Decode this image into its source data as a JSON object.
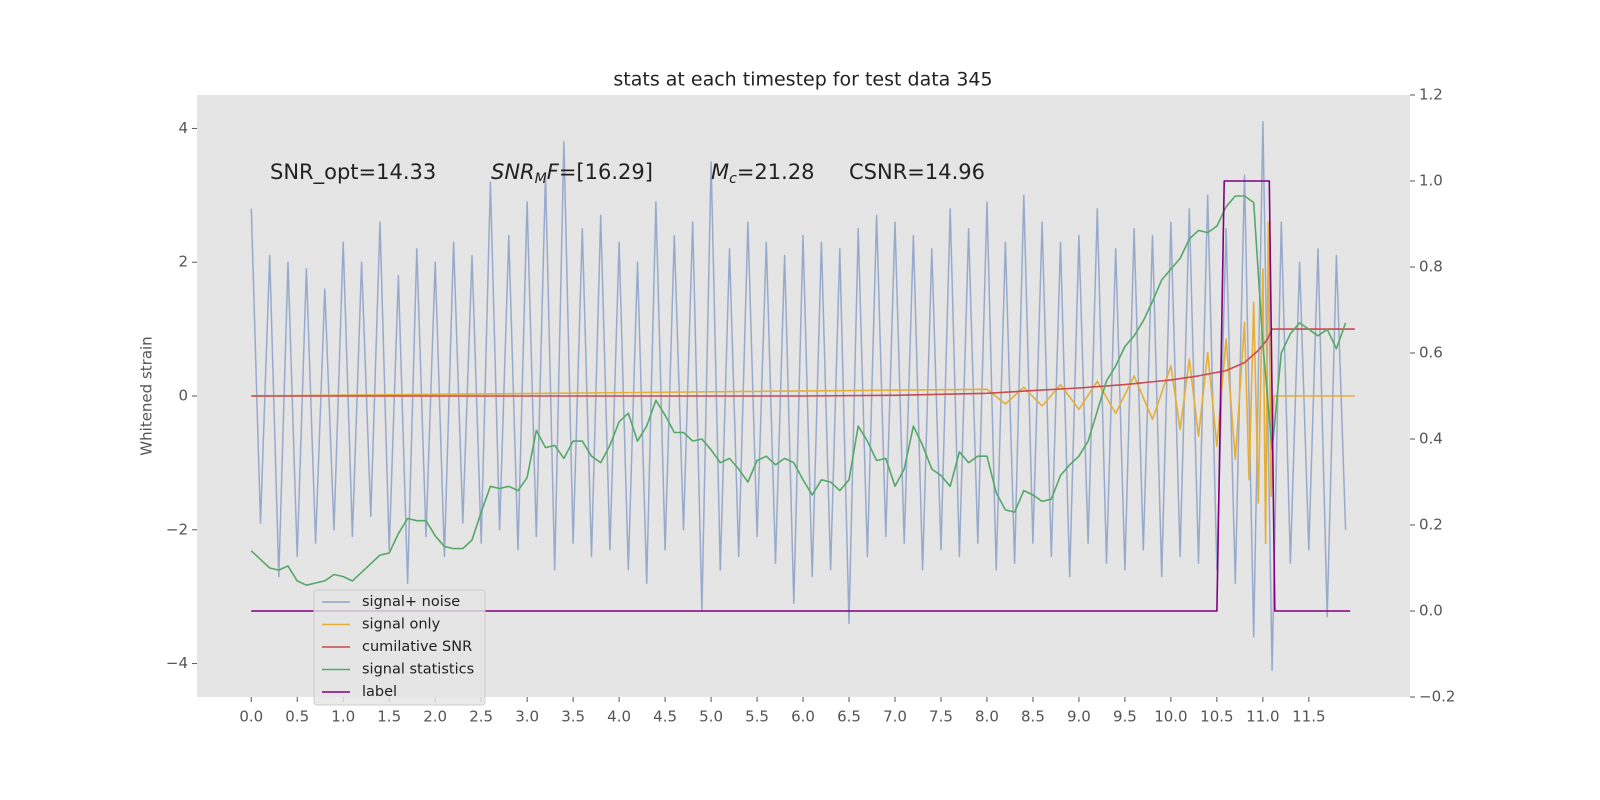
{
  "chart_data": {
    "type": "line",
    "title": "stats at each timestep for test data 345",
    "ylabel": "Whitened strain",
    "xlim": [
      -0.59,
      12.6
    ],
    "ylim": [
      -4.5,
      4.5
    ],
    "y2lim": [
      -0.2,
      1.2
    ],
    "grid": true,
    "legend_position": "lower left",
    "xticks": [
      {
        "value": 0,
        "label": "0.0"
      },
      0.5,
      {
        "value": 1,
        "label": "1.0"
      },
      1.5,
      {
        "value": 2,
        "label": "2.0"
      },
      2.5,
      {
        "value": 3,
        "label": "3.0"
      },
      3.5,
      {
        "value": 4,
        "label": "4.0"
      },
      4.5,
      {
        "value": 5,
        "label": "5.0"
      },
      5.5,
      {
        "value": 6,
        "label": "6.0"
      },
      6.5,
      {
        "value": 7,
        "label": "7.0"
      },
      7.5,
      {
        "value": 8,
        "label": "8.0"
      },
      8.5,
      {
        "value": 9,
        "label": "9.0"
      },
      9.5,
      {
        "value": 10,
        "label": "10.0"
      },
      10.5,
      {
        "value": 11,
        "label": "11.0"
      },
      11.5
    ],
    "yticks": [
      {
        "value": -4,
        "label": "−4"
      },
      {
        "value": -2,
        "label": "−2"
      },
      0,
      2,
      4
    ],
    "y2ticks": [
      {
        "value": -0.2,
        "label": "−0.2"
      },
      {
        "value": 0,
        "label": "0.0"
      },
      0.2,
      0.4,
      0.6,
      0.8,
      {
        "value": 1,
        "label": "1.0"
      },
      1.2
    ],
    "annotations": [
      {
        "parts": [
          "SNR_opt=14.33"
        ]
      },
      {
        "parts": [
          "SNR",
          "M",
          "F",
          "=[16.29]"
        ]
      },
      {
        "parts": [
          "M",
          "c",
          "=21.28"
        ]
      },
      {
        "parts": [
          "CSNR=14.96"
        ]
      }
    ],
    "x": [
      0,
      0.1,
      0.2,
      0.3,
      0.4,
      0.5,
      0.6,
      0.7,
      0.8,
      0.9,
      1,
      1.1,
      1.2,
      1.3,
      1.4,
      1.5,
      1.6,
      1.7,
      1.8,
      1.9,
      2,
      2.1,
      2.2,
      2.3,
      2.4,
      2.5,
      2.6,
      2.7,
      2.8,
      2.9,
      3,
      3.1,
      3.2,
      3.3,
      3.4,
      3.5,
      3.6,
      3.7,
      3.8,
      3.9,
      4,
      4.1,
      4.2,
      4.3,
      4.4,
      4.5,
      4.6,
      4.7,
      4.8,
      4.9,
      5,
      5.1,
      5.2,
      5.3,
      5.4,
      5.5,
      5.6,
      5.7,
      5.8,
      5.9,
      6,
      6.1,
      6.2,
      6.3,
      6.4,
      6.5,
      6.6,
      6.7,
      6.8,
      6.9,
      7,
      7.1,
      7.2,
      7.3,
      7.4,
      7.5,
      7.6,
      7.7,
      7.8,
      7.9,
      8,
      8.1,
      8.2,
      8.3,
      8.4,
      8.5,
      8.6,
      8.7,
      8.8,
      8.9,
      9,
      9.1,
      9.2,
      9.3,
      9.4,
      9.5,
      9.6,
      9.7,
      9.8,
      9.9,
      10,
      10.1,
      10.2,
      10.3,
      10.4,
      10.5,
      10.6,
      10.7,
      10.8,
      10.9,
      11,
      11.1,
      11.2,
      11.3,
      11.4,
      11.5,
      11.6,
      11.7,
      11.8,
      11.9
    ],
    "series": [
      {
        "name": "signal+ noise",
        "color": "#8fa3c9",
        "axis": "y",
        "values": [
          2.8,
          -1.9,
          2.1,
          -2.7,
          2.0,
          -2.4,
          1.9,
          -2.2,
          1.6,
          -2.0,
          2.3,
          -2.1,
          2.0,
          -1.8,
          2.6,
          -2.3,
          1.8,
          -2.8,
          2.2,
          -2.1,
          2.0,
          -2.4,
          2.3,
          -1.9,
          2.1,
          -2.2,
          3.2,
          -2.0,
          2.4,
          -2.3,
          2.9,
          -2.1,
          3.3,
          -2.6,
          3.8,
          -2.2,
          2.5,
          -2.4,
          2.7,
          -2.3,
          2.3,
          -2.6,
          2.0,
          -2.8,
          2.9,
          -2.3,
          2.4,
          -2.0,
          2.6,
          -3.2,
          3.5,
          -2.6,
          2.2,
          -2.4,
          2.6,
          -2.1,
          2.3,
          -2.5,
          2.1,
          -3.1,
          2.4,
          -2.7,
          2.3,
          -2.6,
          2.2,
          -3.4,
          2.5,
          -2.4,
          2.7,
          -2.1,
          2.6,
          -2.2,
          2.4,
          -2.6,
          2.2,
          -2.3,
          2.8,
          -2.4,
          2.5,
          -2.2,
          2.9,
          -2.6,
          2.3,
          -2.5,
          3.0,
          -2.2,
          2.6,
          -2.4,
          2.3,
          -2.7,
          2.4,
          -2.2,
          2.8,
          -2.5,
          2.2,
          -2.6,
          2.5,
          -2.3,
          2.4,
          -2.7,
          2.6,
          -2.4,
          2.8,
          -2.5,
          3.0,
          -2.6,
          2.5,
          -2.8,
          3.3,
          -3.6,
          4.1,
          -4.1,
          2.6,
          -2.5,
          2.0,
          -2.3,
          2.2,
          -3.3,
          2.1,
          -2.0
        ]
      },
      {
        "name": "signal only",
        "color": "#e5ae38",
        "axis": "y",
        "x": [
          0,
          8.0,
          8.2,
          8.4,
          8.6,
          8.8,
          9.0,
          9.2,
          9.4,
          9.6,
          9.8,
          10.0,
          10.1,
          10.2,
          10.3,
          10.4,
          10.5,
          10.6,
          10.7,
          10.8,
          10.85,
          10.9,
          10.95,
          11.0,
          11.03,
          11.06,
          11.09,
          11.12,
          12.0
        ],
        "values": [
          0,
          0.1,
          -0.12,
          0.13,
          -0.15,
          0.17,
          -0.2,
          0.22,
          -0.26,
          0.3,
          -0.35,
          0.45,
          -0.5,
          0.55,
          -0.6,
          0.65,
          -0.75,
          0.85,
          -0.95,
          1.1,
          -1.25,
          1.4,
          -1.6,
          1.9,
          -2.2,
          2.6,
          -1.5,
          0,
          0
        ]
      },
      {
        "name": "cumilative SNR",
        "color": "#c94a4f",
        "axis": "y",
        "x": [
          0,
          6,
          7,
          8,
          8.5,
          9,
          9.5,
          10,
          10.3,
          10.6,
          10.8,
          10.95,
          11.05,
          11.1,
          12
        ],
        "values": [
          0,
          0,
          0.01,
          0.04,
          0.08,
          0.12,
          0.17,
          0.24,
          0.3,
          0.38,
          0.5,
          0.68,
          0.85,
          1.0,
          1.0
        ]
      },
      {
        "name": "signal statistics",
        "color": "#55a868",
        "axis": "y2",
        "values": [
          0.14,
          0.12,
          0.1,
          0.095,
          0.105,
          0.07,
          0.06,
          0.065,
          0.07,
          0.085,
          0.08,
          0.07,
          0.09,
          0.11,
          0.13,
          0.135,
          0.18,
          0.215,
          0.21,
          0.21,
          0.175,
          0.15,
          0.145,
          0.145,
          0.165,
          0.23,
          0.29,
          0.285,
          0.29,
          0.28,
          0.31,
          0.42,
          0.38,
          0.385,
          0.355,
          0.395,
          0.395,
          0.36,
          0.345,
          0.385,
          0.44,
          0.46,
          0.395,
          0.43,
          0.49,
          0.455,
          0.415,
          0.415,
          0.395,
          0.4,
          0.375,
          0.345,
          0.355,
          0.33,
          0.3,
          0.35,
          0.36,
          0.34,
          0.355,
          0.345,
          0.305,
          0.27,
          0.305,
          0.3,
          0.28,
          0.305,
          0.43,
          0.395,
          0.35,
          0.355,
          0.29,
          0.33,
          0.43,
          0.385,
          0.33,
          0.315,
          0.29,
          0.37,
          0.345,
          0.36,
          0.36,
          0.275,
          0.235,
          0.23,
          0.28,
          0.27,
          0.255,
          0.26,
          0.315,
          0.34,
          0.36,
          0.395,
          0.465,
          0.535,
          0.57,
          0.615,
          0.64,
          0.675,
          0.72,
          0.77,
          0.795,
          0.82,
          0.865,
          0.885,
          0.88,
          0.895,
          0.94,
          0.965,
          0.965,
          0.95,
          0.62,
          0.375,
          0.6,
          0.645,
          0.67,
          0.655,
          0.64,
          0.655,
          0.61,
          0.67
        ]
      },
      {
        "name": "label",
        "color": "#800080",
        "axis": "y2",
        "x": [
          0,
          10.5,
          10.58,
          11.07,
          11.13,
          11.95
        ],
        "values": [
          0,
          0,
          1,
          1,
          0,
          0
        ]
      }
    ]
  }
}
